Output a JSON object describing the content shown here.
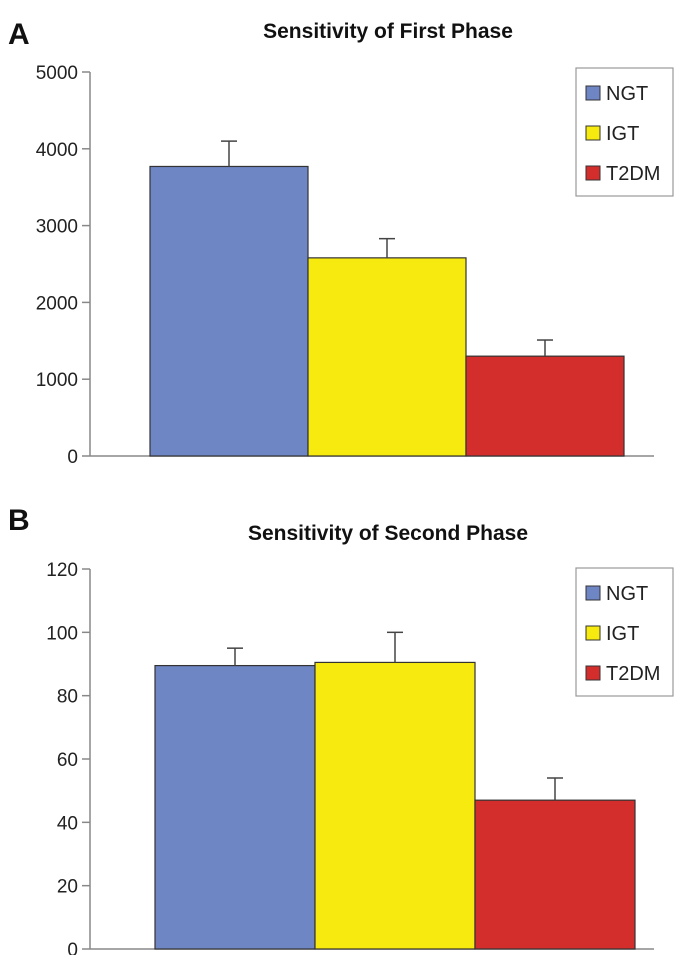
{
  "chart_data": [
    {
      "type": "bar",
      "panel_label": "A",
      "title": "Sensitivity of First Phase",
      "xlabel": "",
      "ylabel": "",
      "ylim": [
        0,
        5000
      ],
      "yticks": [
        0,
        1000,
        2000,
        3000,
        4000,
        5000
      ],
      "grid": false,
      "legend": "top-right",
      "categories": [
        ""
      ],
      "series": [
        {
          "name": "NGT",
          "values": [
            3770
          ],
          "error": [
            330
          ],
          "color": "#6f86c4"
        },
        {
          "name": "IGT",
          "values": [
            2580
          ],
          "error": [
            250
          ],
          "color": "#f7ea0e"
        },
        {
          "name": "T2DM",
          "values": [
            1300
          ],
          "error": [
            210
          ],
          "color": "#d42e2c"
        }
      ]
    },
    {
      "type": "bar",
      "panel_label": "B",
      "title": "Sensitivity of Second Phase",
      "xlabel": "",
      "ylabel": "",
      "ylim": [
        0,
        120
      ],
      "yticks": [
        0,
        20,
        40,
        60,
        80,
        100,
        120
      ],
      "grid": false,
      "legend": "top-right",
      "categories": [
        ""
      ],
      "series": [
        {
          "name": "NGT",
          "values": [
            89.5
          ],
          "error": [
            5.5
          ],
          "color": "#6f86c4"
        },
        {
          "name": "IGT",
          "values": [
            90.5
          ],
          "error": [
            9.5
          ],
          "color": "#f7ea0e"
        },
        {
          "name": "T2DM",
          "values": [
            47
          ],
          "error": [
            7
          ],
          "color": "#d42e2c"
        }
      ]
    }
  ]
}
